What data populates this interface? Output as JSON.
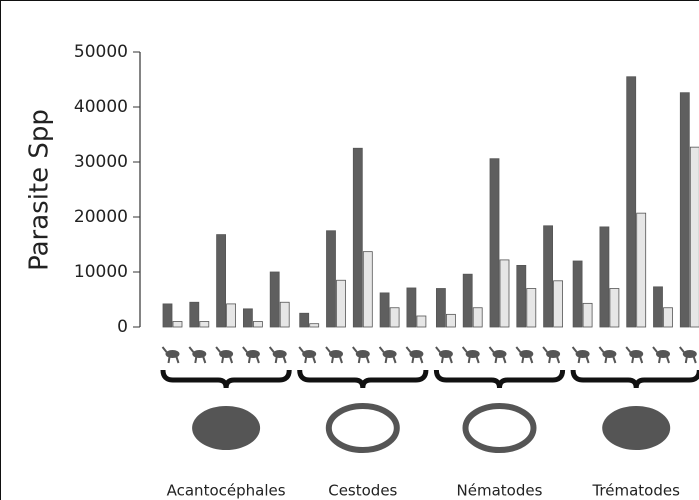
{
  "chart_data": {
    "type": "bar",
    "y_label": "Parasite Spp",
    "groups": [
      "Acantocéphales",
      "Cestodes",
      "Nématodes",
      "Trématodes"
    ],
    "categories": [
      null,
      null,
      null,
      null,
      null,
      null,
      null,
      null,
      null,
      null,
      null,
      null,
      null,
      null,
      null,
      null,
      null,
      null,
      null,
      null
    ],
    "series": [
      {
        "color": "#5f5f5f",
        "values": [
          4200,
          4500,
          16800,
          3300,
          10000,
          2500,
          17500,
          32500,
          6200,
          7100,
          7000,
          9600,
          30600,
          11200,
          18400,
          12000,
          18200,
          45500,
          7300,
          42600
        ]
      },
      {
        "color": "#e6e6e6",
        "values": [
          1000,
          1000,
          4200,
          1000,
          4500,
          600,
          8500,
          13700,
          3500,
          2000,
          2300,
          3500,
          12200,
          7000,
          8400,
          4300,
          7000,
          20700,
          3500,
          32700
        ]
      }
    ],
    "ylim": [
      0,
      50000
    ],
    "yticks": [
      0,
      10000,
      20000,
      30000,
      40000,
      50000
    ]
  }
}
